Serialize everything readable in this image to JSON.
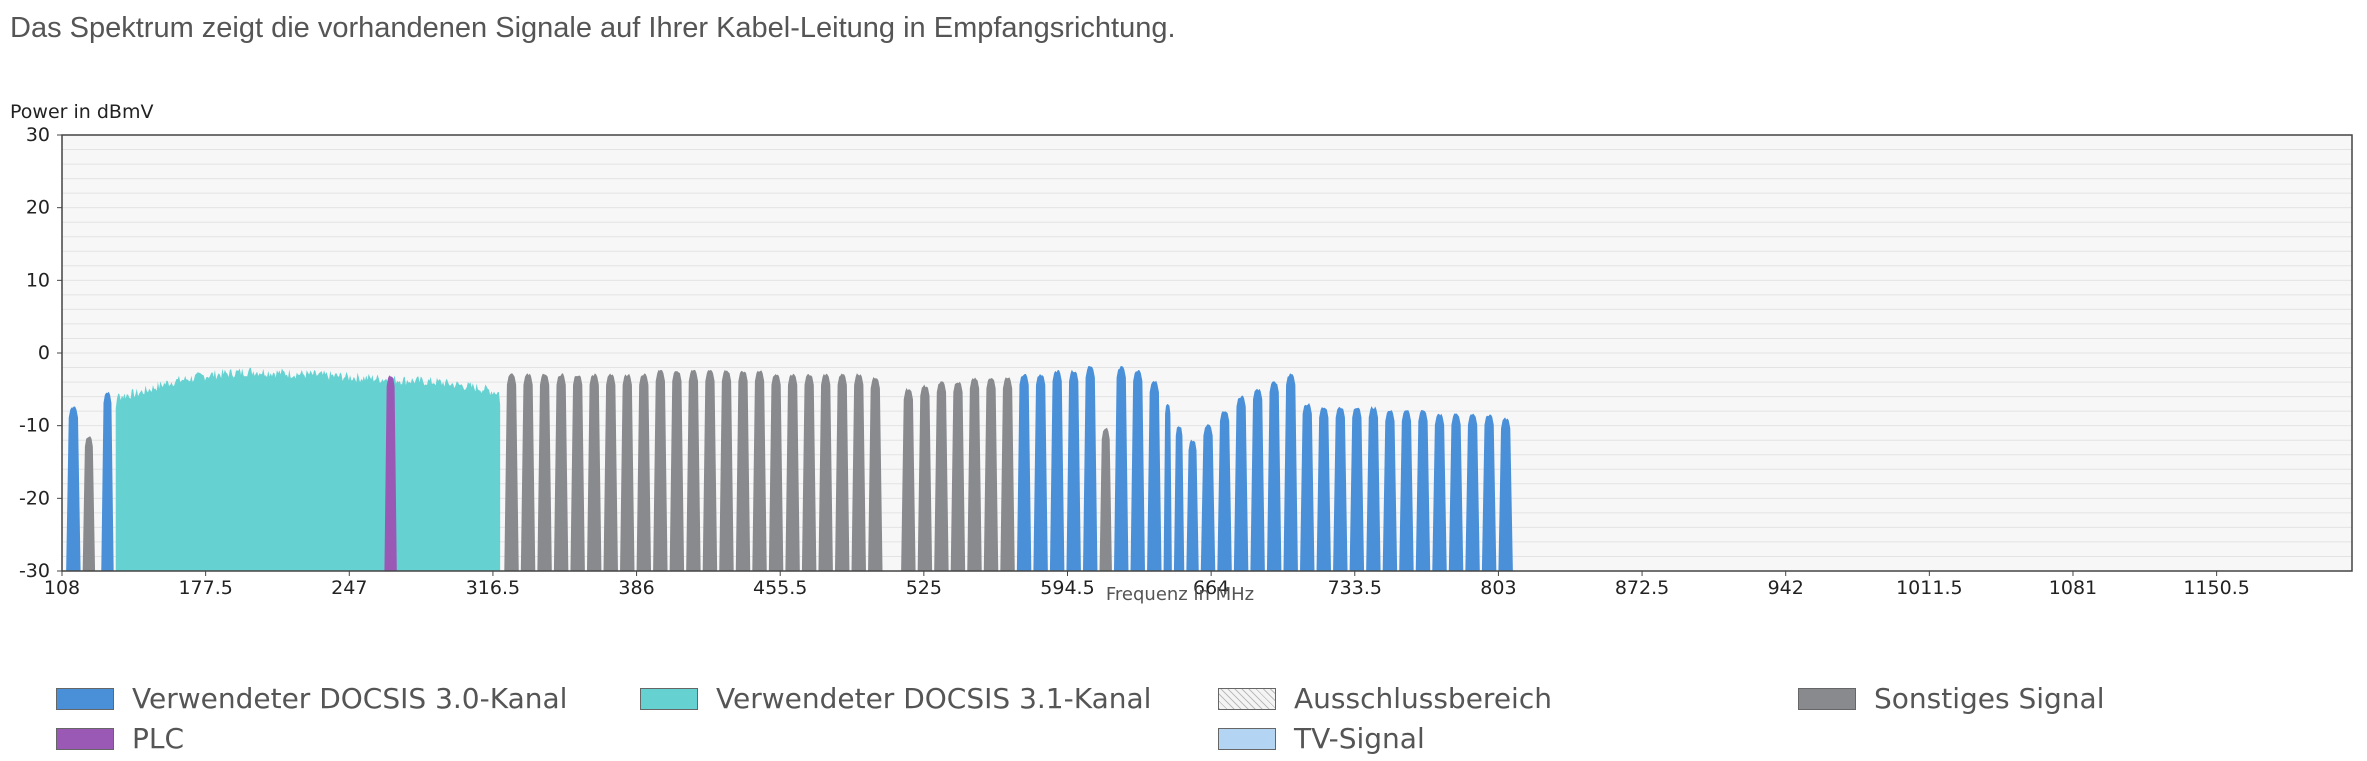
{
  "intro_text": "Das Spektrum zeigt die vorhandenen Signale auf Ihrer Kabel-Leitung in Empfangsrichtung.",
  "chart_data": {
    "type": "area",
    "ylabel": "Power in dBmV",
    "xlabel": "Frequenz in MHz",
    "xlim": [
      108,
      1216
    ],
    "ylim": [
      -30,
      30
    ],
    "x_ticks": [
      "108",
      "177.5",
      "247",
      "316.5",
      "386",
      "455.5",
      "525",
      "594.5",
      "664",
      "733.5",
      "803",
      "872.5",
      "942",
      "1011.5",
      "1081",
      "1150.5"
    ],
    "y_ticks": [
      "30",
      "20",
      "10",
      "0",
      "-10",
      "-20",
      "-30"
    ],
    "grid": true,
    "legend_position": "bottom",
    "colors": {
      "docsis30": "#4a90d9",
      "docsis31": "#66d1d1",
      "excluded": "#f0f0f0",
      "other": "#888a8d",
      "plc": "#9b59b6",
      "tv": "#b3d4f2",
      "plot_bg": "#f7f7f7",
      "grid": "#e3e3e3"
    },
    "series": [
      {
        "key": "docsis30",
        "name": "Verwendeter DOCSIS 3.0-Kanal",
        "mode": "channels",
        "channels": [
          [
            110,
            117,
            -7.5
          ],
          [
            127,
            133,
            -5.5
          ]
        ]
      },
      {
        "key": "other",
        "name": "Sonstiges Signal",
        "mode": "channels",
        "channels": [
          [
            118,
            124,
            -11.5
          ]
        ]
      },
      {
        "key": "docsis31",
        "name": "Verwendeter DOCSIS 3.1-Kanal",
        "mode": "continuous",
        "ranges": [
          [
            134,
            320
          ]
        ],
        "envelope": [
          [
            134,
            -6
          ],
          [
            145,
            -5.5
          ],
          [
            160,
            -4
          ],
          [
            180,
            -3
          ],
          [
            200,
            -2.5
          ],
          [
            230,
            -3
          ],
          [
            260,
            -3.5
          ],
          [
            290,
            -4
          ],
          [
            310,
            -4.8
          ],
          [
            320,
            -5.5
          ]
        ]
      },
      {
        "key": "plc",
        "name": "PLC",
        "mode": "channels",
        "channels": [
          [
            264,
            270,
            -3.2
          ]
        ]
      },
      {
        "key": "other",
        "name": "Sonstiges Signal",
        "mode": "channels",
        "channels": [
          [
            322,
            329,
            -3
          ],
          [
            330,
            337,
            -3
          ],
          [
            338,
            345,
            -3
          ],
          [
            346,
            353,
            -3
          ],
          [
            354,
            361,
            -3
          ],
          [
            362,
            369,
            -3
          ],
          [
            370,
            377,
            -3
          ],
          [
            378,
            385,
            -3
          ],
          [
            386,
            393,
            -3
          ],
          [
            394,
            401,
            -2.5
          ],
          [
            402,
            409,
            -2.5
          ],
          [
            410,
            417,
            -2.5
          ],
          [
            418,
            425,
            -2.5
          ],
          [
            426,
            433,
            -2.5
          ],
          [
            434,
            441,
            -2.5
          ],
          [
            442,
            449,
            -2.5
          ],
          [
            450,
            457,
            -3
          ],
          [
            458,
            465,
            -3
          ],
          [
            466,
            473,
            -3
          ],
          [
            474,
            481,
            -3
          ],
          [
            482,
            489,
            -3
          ],
          [
            490,
            497,
            -3
          ],
          [
            498,
            505,
            -3.5
          ],
          [
            514,
            521,
            -5
          ],
          [
            522,
            529,
            -4.5
          ],
          [
            530,
            537,
            -4
          ],
          [
            538,
            545,
            -4
          ],
          [
            546,
            553,
            -3.5
          ],
          [
            554,
            561,
            -3.5
          ],
          [
            562,
            569,
            -3.5
          ],
          [
            610,
            616,
            -10.5
          ]
        ]
      },
      {
        "key": "docsis30",
        "name": "Verwendeter DOCSIS 3.0-Kanal",
        "mode": "channels",
        "channels": [
          [
            570,
            577,
            -3
          ],
          [
            578,
            585,
            -3
          ],
          [
            586,
            593,
            -2.5
          ],
          [
            594,
            601,
            -2.5
          ],
          [
            602,
            609,
            -2
          ],
          [
            617,
            624,
            -2
          ],
          [
            625,
            632,
            -2.5
          ],
          [
            633,
            640,
            -4
          ],
          [
            641,
            645,
            -7
          ],
          [
            646,
            651,
            -10
          ],
          [
            652,
            658,
            -12
          ],
          [
            659,
            666,
            -10
          ],
          [
            667,
            674,
            -8
          ],
          [
            675,
            682,
            -6
          ],
          [
            683,
            690,
            -5
          ],
          [
            691,
            698,
            -4
          ],
          [
            699,
            706,
            -3
          ],
          [
            707,
            714,
            -7
          ],
          [
            715,
            722,
            -7.5
          ],
          [
            723,
            730,
            -7.5
          ],
          [
            731,
            738,
            -7.5
          ],
          [
            739,
            746,
            -7.5
          ],
          [
            747,
            754,
            -8
          ],
          [
            755,
            762,
            -8
          ],
          [
            763,
            770,
            -8
          ],
          [
            771,
            778,
            -8.5
          ],
          [
            779,
            786,
            -8.5
          ],
          [
            787,
            794,
            -8.5
          ],
          [
            795,
            802,
            -8.5
          ],
          [
            803,
            810,
            -9
          ]
        ]
      }
    ],
    "legend": [
      {
        "key": "docsis30",
        "label": "Verwendeter DOCSIS 3.0-Kanal"
      },
      {
        "key": "docsis31",
        "label": "Verwendeter DOCSIS 3.1-Kanal"
      },
      {
        "key": "excluded",
        "label": "Ausschlussbereich"
      },
      {
        "key": "other",
        "label": "Sonstiges Signal"
      },
      {
        "key": "plc",
        "label": "PLC"
      },
      {
        "key": "tv",
        "label": "TV-Signal"
      }
    ]
  }
}
